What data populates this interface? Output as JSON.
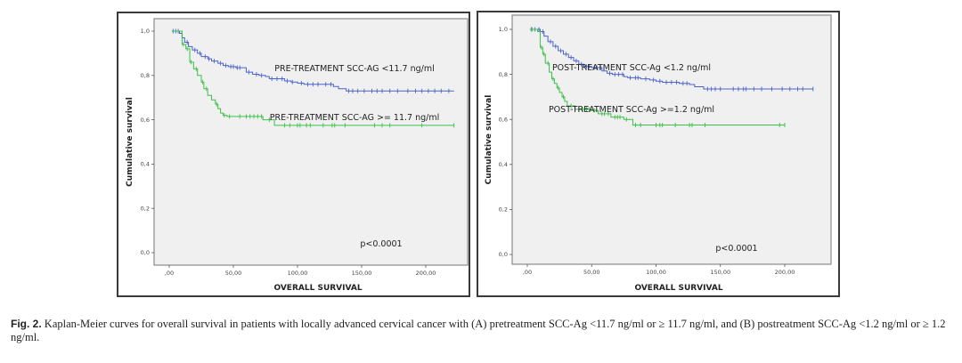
{
  "chart_data": [
    {
      "id": "A",
      "type": "line",
      "subtype": "kaplan-meier-step",
      "title": "",
      "xlabel": "OVERALL SURVIVAL",
      "ylabel": "Cumulative survival",
      "xlim": [
        -12,
        235
      ],
      "ylim": [
        -0.02,
        1.05
      ],
      "xticks": [
        0,
        50,
        100,
        150,
        200
      ],
      "xtick_labels": [
        ",00",
        "50,00",
        "100,00",
        "150,00",
        "200,00"
      ],
      "yticks": [
        0,
        0.2,
        0.4,
        0.6,
        0.8,
        1.0
      ],
      "ytick_labels": [
        "0,0",
        "0,2",
        "0,4",
        "0,6",
        "0,8",
        "1,0"
      ],
      "grid": false,
      "annotation": "p<0.0001",
      "series": [
        {
          "name": "PRE-TREATMENT SCC-AG <11.7 ng/ml",
          "color": "#4a63c8",
          "x": [
            2,
            8,
            10,
            12,
            15,
            18,
            22,
            25,
            30,
            33,
            38,
            42,
            46,
            52,
            57,
            60,
            65,
            70,
            75,
            78,
            90,
            95,
            100,
            105,
            110,
            120,
            128,
            132,
            138,
            222
          ],
          "y": [
            1.0,
            0.99,
            0.97,
            0.95,
            0.93,
            0.915,
            0.9,
            0.885,
            0.875,
            0.865,
            0.855,
            0.845,
            0.84,
            0.835,
            0.835,
            0.815,
            0.805,
            0.8,
            0.795,
            0.785,
            0.775,
            0.77,
            0.765,
            0.76,
            0.76,
            0.76,
            0.75,
            0.74,
            0.73,
            0.73
          ],
          "censor_x": [
            3,
            5,
            7,
            14,
            20,
            24,
            28,
            31,
            35,
            40,
            44,
            48,
            50,
            53,
            55,
            62,
            68,
            72,
            80,
            84,
            88,
            92,
            96,
            103,
            108,
            112,
            116,
            122,
            126,
            140,
            143,
            147,
            152,
            158,
            162,
            166,
            172,
            178,
            186,
            192,
            197,
            202,
            207,
            212,
            218
          ]
        },
        {
          "name": "PRE-TREATMENT SCC-AG >= 11.7 ng/ml",
          "color": "#3cbf4a",
          "x": [
            2,
            8,
            10,
            13,
            16,
            19,
            22,
            25,
            27,
            30,
            33,
            36,
            38,
            40,
            42,
            45,
            73,
            76,
            82,
            222
          ],
          "y": [
            1.0,
            1.0,
            0.94,
            0.92,
            0.86,
            0.83,
            0.8,
            0.77,
            0.74,
            0.71,
            0.69,
            0.67,
            0.65,
            0.63,
            0.62,
            0.615,
            0.6,
            0.6,
            0.575,
            0.575
          ],
          "censor_x": [
            11,
            14,
            17,
            21,
            26,
            29,
            37,
            43,
            47,
            55,
            60,
            63,
            66,
            69,
            72,
            78,
            90,
            94,
            100,
            102,
            107,
            110,
            120,
            127,
            129,
            137,
            160,
            166,
            172,
            197,
            222
          ]
        }
      ]
    },
    {
      "id": "B",
      "type": "line",
      "subtype": "kaplan-meier-step",
      "title": "",
      "xlabel": "OVERALL SURVIVAL",
      "ylabel": "Cumulative survival",
      "xlim": [
        -12,
        235
      ],
      "ylim": [
        -0.02,
        1.03
      ],
      "xticks": [
        0,
        50,
        100,
        150,
        200
      ],
      "xtick_labels": [
        ",00",
        "50,00",
        "100,00",
        "150,00",
        "200,00"
      ],
      "yticks": [
        0,
        0.2,
        0.4,
        0.6,
        0.8,
        1.0
      ],
      "ytick_labels": [
        "0,0",
        "0,2",
        "0,4",
        "0,6",
        "0,8",
        "1,0"
      ],
      "grid": false,
      "annotation": "p<0.0001",
      "series": [
        {
          "name": "POST-TREATMENT SCC-Ag <1.2 ng/ml",
          "color": "#4a63c8",
          "x": [
            2,
            10,
            13,
            16,
            20,
            24,
            28,
            32,
            36,
            40,
            44,
            50,
            58,
            62,
            66,
            75,
            78,
            88,
            95,
            100,
            105,
            118,
            126,
            130,
            137,
            222
          ],
          "y": [
            1.0,
            0.99,
            0.97,
            0.945,
            0.925,
            0.905,
            0.89,
            0.875,
            0.86,
            0.845,
            0.835,
            0.83,
            0.815,
            0.805,
            0.8,
            0.79,
            0.785,
            0.78,
            0.775,
            0.77,
            0.765,
            0.76,
            0.755,
            0.745,
            0.735,
            0.735
          ],
          "censor_x": [
            3,
            6,
            9,
            12,
            18,
            22,
            26,
            30,
            34,
            38,
            42,
            46,
            48,
            52,
            54,
            57,
            64,
            68,
            71,
            74,
            80,
            84,
            86,
            92,
            98,
            103,
            108,
            112,
            116,
            121,
            124,
            140,
            143,
            146,
            150,
            160,
            164,
            168,
            170,
            176,
            182,
            190,
            198,
            204,
            210,
            214,
            222
          ]
        },
        {
          "name": "POST-TREATMENT SCC-Ag >=1.2 ng/ml",
          "color": "#3cbf4a",
          "x": [
            2,
            8,
            10,
            12,
            14,
            17,
            19,
            21,
            23,
            25,
            27,
            29,
            31,
            37,
            50,
            55,
            65,
            75,
            82,
            200
          ],
          "y": [
            1.0,
            0.99,
            0.92,
            0.89,
            0.85,
            0.81,
            0.78,
            0.76,
            0.74,
            0.72,
            0.7,
            0.68,
            0.66,
            0.645,
            0.64,
            0.625,
            0.61,
            0.6,
            0.575,
            0.575
          ],
          "censor_x": [
            4,
            11,
            13,
            16,
            20,
            24,
            28,
            34,
            40,
            43,
            46,
            48,
            52,
            58,
            60,
            63,
            68,
            70,
            72,
            77,
            84,
            88,
            100,
            103,
            105,
            115,
            126,
            128,
            138,
            196,
            200
          ]
        }
      ]
    }
  ],
  "caption": {
    "label": "Fig. 2.",
    "text": " Kaplan-Meier curves for overall survival in patients with locally advanced cervical cancer with (A) pretreatment SCC-Ag <11.7 ng/ml or ≥ 11.7 ng/ml, and (B) postreatment SCC-Ag <1.2 ng/ml or ≥ 1.2 ng/ml."
  }
}
